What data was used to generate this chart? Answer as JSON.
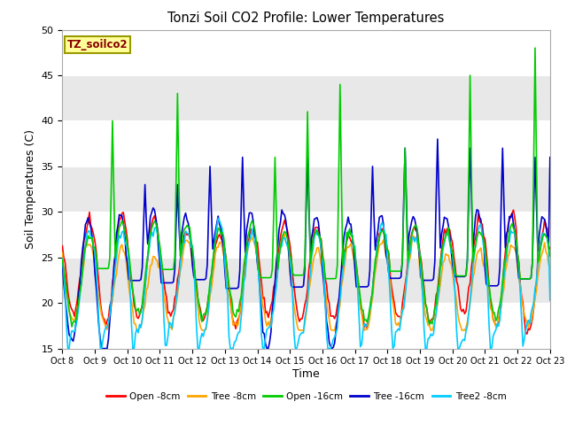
{
  "title": "Tonzi Soil CO2 Profile: Lower Temperatures",
  "xlabel": "Time",
  "ylabel": "Soil Temperatures (C)",
  "ylim": [
    15,
    50
  ],
  "xlim": [
    0,
    360
  ],
  "background_color": "#ffffff",
  "plot_bg_color": "#f0f0f0",
  "legend_label": "TZ_soilco2",
  "series": {
    "open_8cm": {
      "color": "#ff0000",
      "label": "Open -8cm",
      "lw": 1.2
    },
    "tree_8cm": {
      "color": "#ffa500",
      "label": "Tree -8cm",
      "lw": 1.2
    },
    "open_16cm": {
      "color": "#00cc00",
      "label": "Open -16cm",
      "lw": 1.2
    },
    "tree_16cm": {
      "color": "#0000cc",
      "label": "Tree -16cm",
      "lw": 1.2
    },
    "tree2_8cm": {
      "color": "#00ccff",
      "label": "Tree2 -8cm",
      "lw": 1.2
    }
  },
  "tick_labels": [
    "Oct 8",
    "Oct 9",
    "Oct 10",
    "Oct 11",
    "Oct 12",
    "Oct 13",
    "Oct 14",
    "Oct 15",
    "Oct 16",
    "Oct 17",
    "Oct 18",
    "Oct 19",
    "Oct 20",
    "Oct 21",
    "Oct 22",
    "Oct 23"
  ],
  "tick_positions": [
    0,
    24,
    48,
    72,
    96,
    120,
    144,
    168,
    192,
    216,
    240,
    264,
    288,
    312,
    336,
    360
  ],
  "yticks": [
    15,
    20,
    25,
    30,
    35,
    40,
    45,
    50
  ],
  "hband_colors": [
    "#ffffff",
    "#e8e8e8",
    "#ffffff",
    "#e8e8e8",
    "#ffffff",
    "#e8e8e8",
    "#ffffff"
  ],
  "hband_edges": [
    15,
    20,
    25,
    30,
    35,
    40,
    45,
    50
  ]
}
